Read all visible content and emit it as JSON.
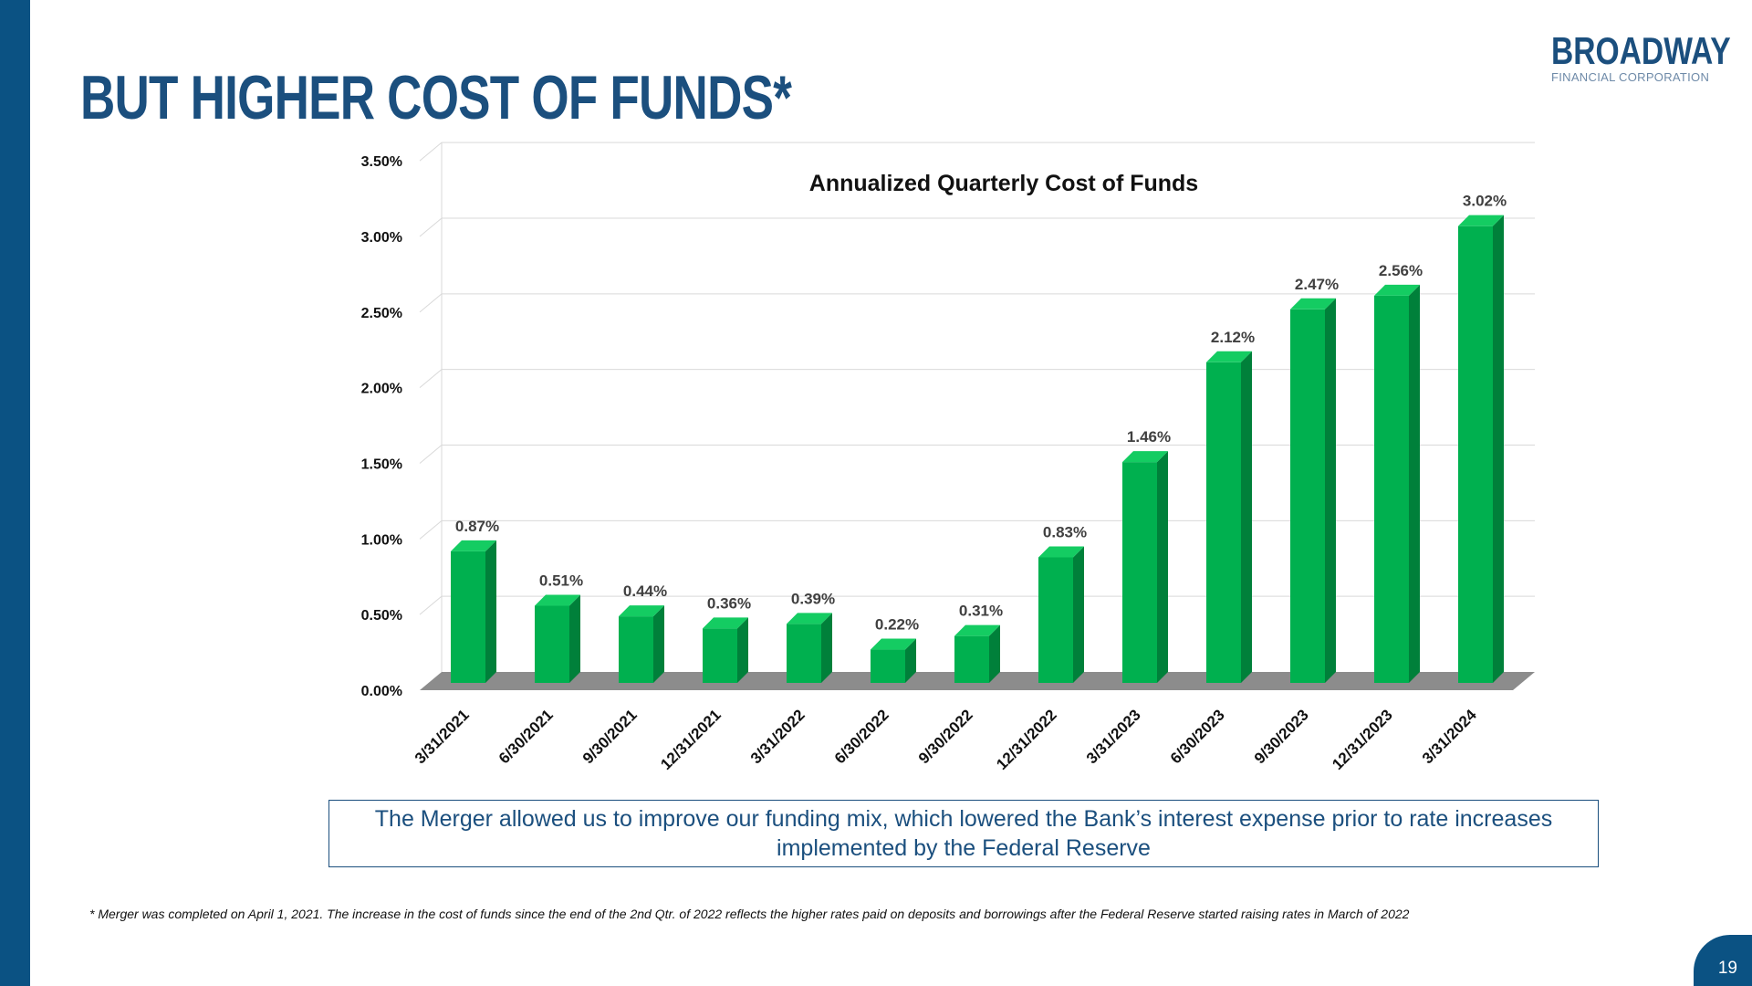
{
  "slide": {
    "title": "BUT HIGHER COST OF FUNDS*",
    "logo_main": "BROADWAY",
    "logo_sub": "FINANCIAL CORPORATION",
    "note": "The Merger allowed us to improve our funding mix, which lowered the Bank’s interest expense prior to rate increases implemented by the Federal Reserve",
    "footnote": "* Merger was completed on April 1, 2021. The increase in the cost of funds since the end of the 2nd Qtr. of 2022 reflects the higher rates paid on deposits and borrowings after the Federal Reserve started raising rates in March of 2022",
    "page_number": "19"
  },
  "colors": {
    "brand": "#1b4f7e",
    "sidebar": "#0b5283",
    "bar_front": "#00b04f",
    "bar_side": "#00803a",
    "bar_top": "#14cc62",
    "floor": "#8c8c8c"
  },
  "chart_data": {
    "type": "bar",
    "title": "Annualized Quarterly Cost of Funds",
    "categories": [
      "3/31/2021",
      "6/30/2021",
      "9/30/2021",
      "12/31/2021",
      "3/31/2022",
      "6/30/2022",
      "9/30/2022",
      "12/31/2022",
      "3/31/2023",
      "6/30/2023",
      "9/30/2023",
      "12/31/2023",
      "3/31/2024"
    ],
    "values": [
      0.87,
      0.51,
      0.44,
      0.36,
      0.39,
      0.22,
      0.31,
      0.83,
      1.46,
      2.12,
      2.47,
      2.56,
      3.02
    ],
    "data_labels": [
      "0.87%",
      "0.51%",
      "0.44%",
      "0.36%",
      "0.39%",
      "0.22%",
      "0.31%",
      "0.83%",
      "1.46%",
      "2.12%",
      "2.47%",
      "2.56%",
      "3.02%"
    ],
    "y_ticks": [
      "0.00%",
      "0.50%",
      "1.00%",
      "1.50%",
      "2.00%",
      "2.50%",
      "3.00%",
      "3.50%"
    ],
    "ylim": [
      0,
      3.5
    ],
    "y_unit": "%",
    "grid": true,
    "legend": "none",
    "style": "3d-column"
  }
}
